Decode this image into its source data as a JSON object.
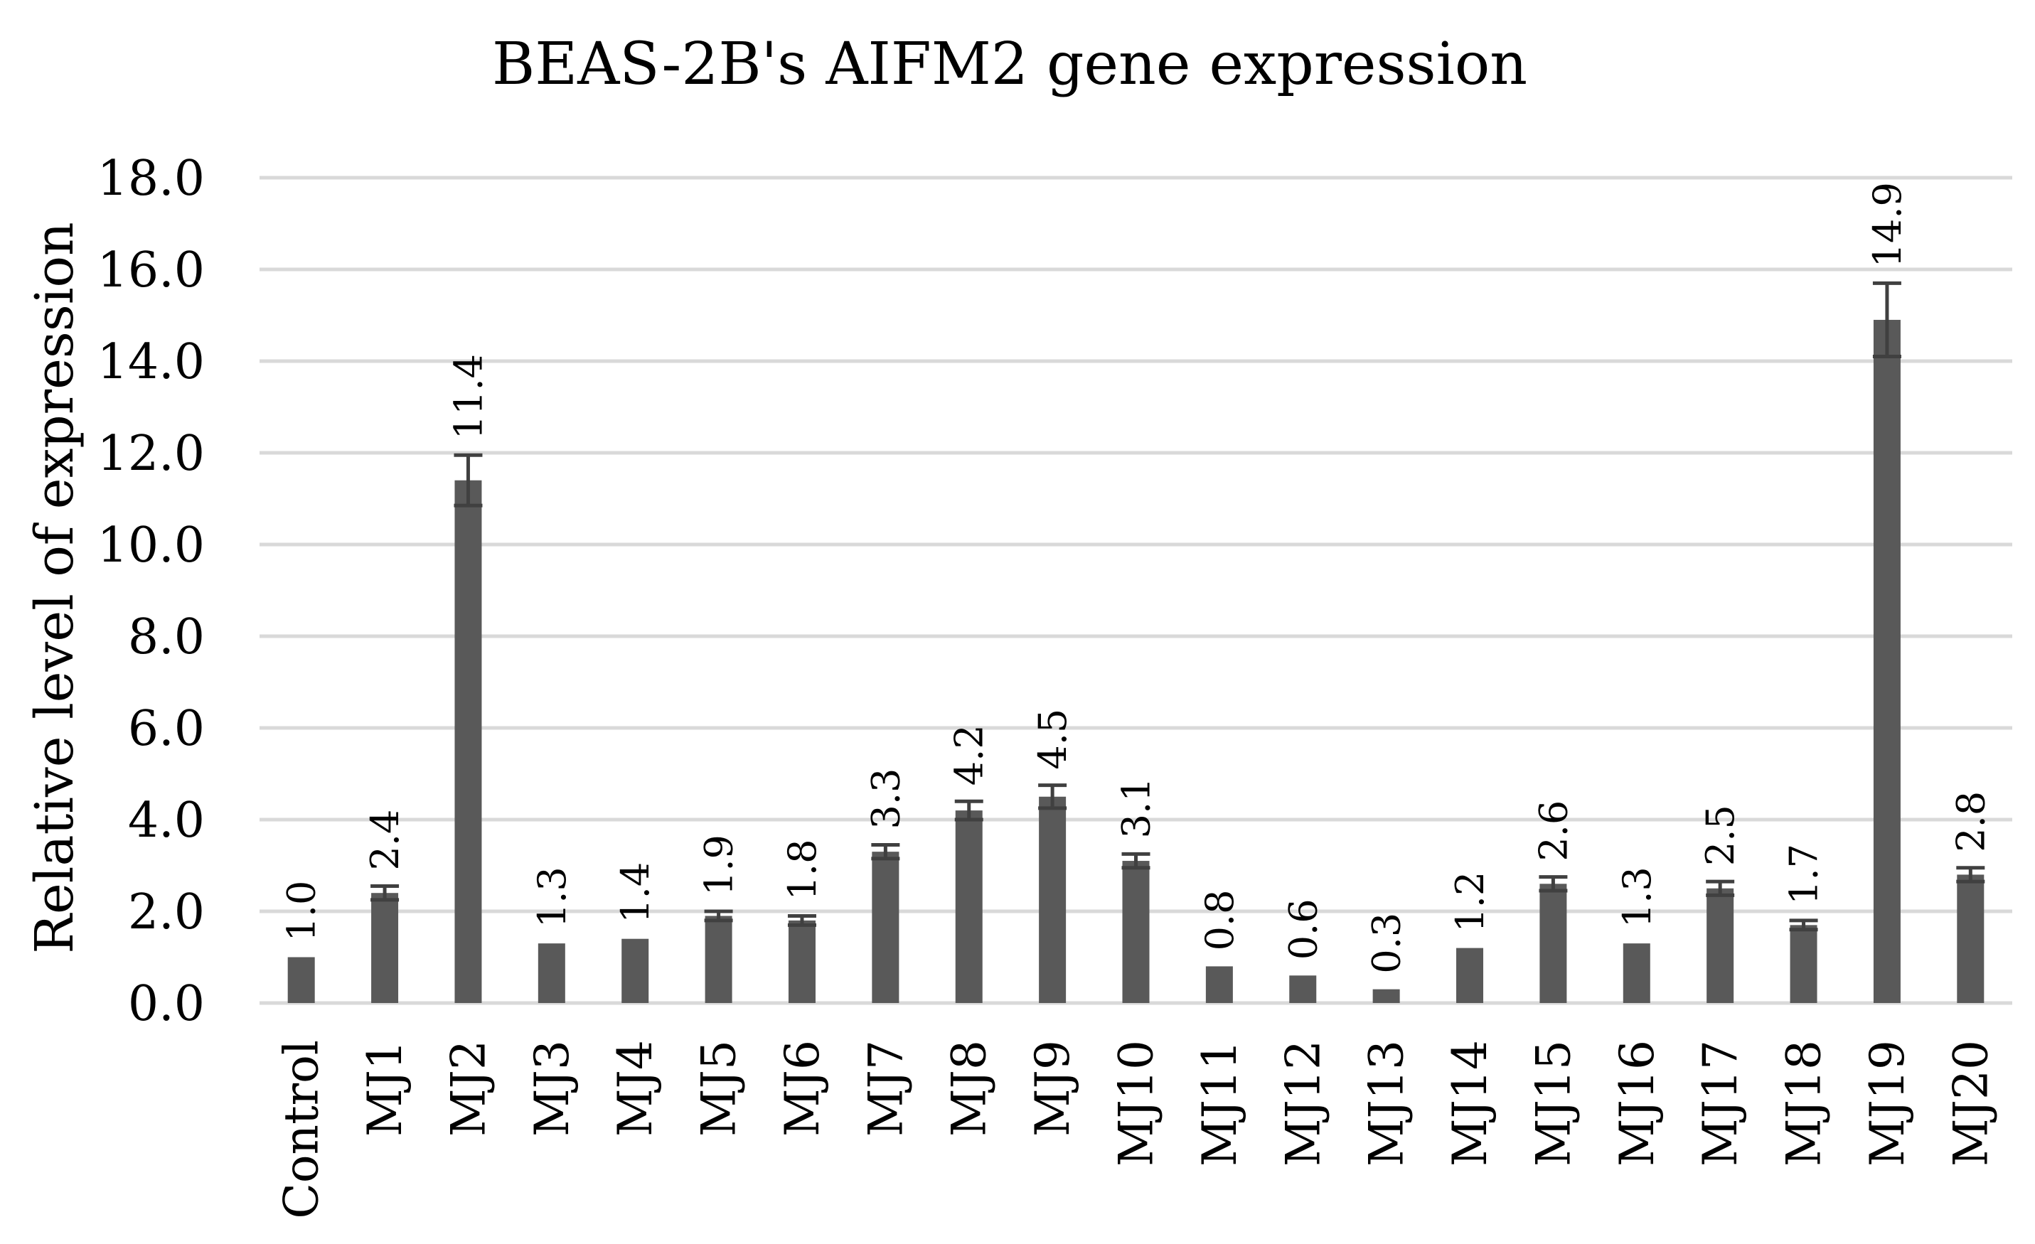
{
  "chart_data": {
    "type": "bar",
    "title": "BEAS-2B's AIFM2 gene expression",
    "xlabel": "",
    "ylabel": "Relative level of expression",
    "ylim": [
      0,
      18
    ],
    "ytick_step": 2,
    "ytick_labels": [
      "0.0",
      "2.0",
      "4.0",
      "6.0",
      "8.0",
      "10.0",
      "12.0",
      "14.0",
      "16.0",
      "18.0"
    ],
    "grid": true,
    "legend": "none",
    "bar_color": "#595959",
    "grid_color": "#d9d9d9",
    "categories": [
      "Control",
      "MJ1",
      "MJ2",
      "MJ3",
      "MJ4",
      "MJ5",
      "MJ6",
      "MJ7",
      "MJ8",
      "MJ9",
      "MJ10",
      "MJ11",
      "MJ12",
      "MJ13",
      "MJ14",
      "MJ15",
      "MJ16",
      "MJ17",
      "MJ18",
      "MJ19",
      "MJ20"
    ],
    "values": [
      1.0,
      2.4,
      11.4,
      1.3,
      1.4,
      1.9,
      1.8,
      3.3,
      4.2,
      4.5,
      3.1,
      0.8,
      0.6,
      0.3,
      1.2,
      2.6,
      1.3,
      2.5,
      1.7,
      14.9,
      2.8
    ],
    "data_labels": [
      "1.0",
      "2.4",
      "11.4",
      "1.3",
      "1.4",
      "1.9",
      "1.8",
      "3.3",
      "4.2",
      "4.5",
      "3.1",
      "0.8",
      "0.6",
      "0.3",
      "1.2",
      "2.6",
      "1.3",
      "2.5",
      "1.7",
      "14.9",
      "2.8"
    ],
    "error": [
      0,
      0.15,
      0.55,
      0,
      0,
      0.1,
      0.1,
      0.15,
      0.2,
      0.25,
      0.15,
      0,
      0,
      0,
      0,
      0.15,
      0,
      0.15,
      0.1,
      0.8,
      0.15
    ]
  }
}
